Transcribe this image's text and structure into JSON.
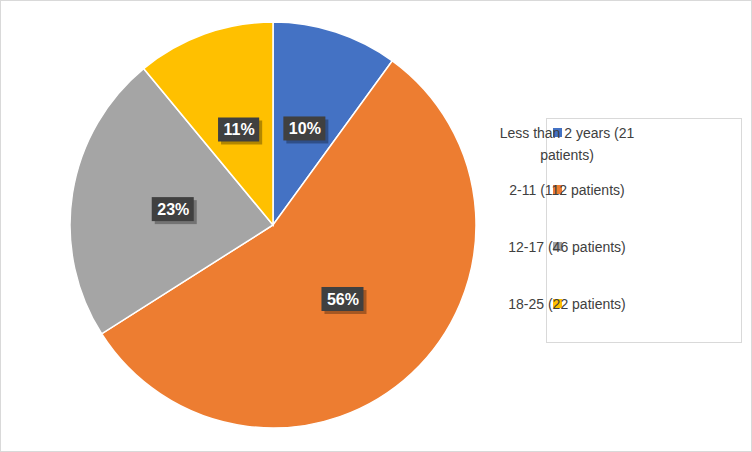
{
  "chart_data": {
    "type": "pie",
    "categories": [
      "Less than 2 years (21 patients)",
      "2-11 (112 patients)",
      "12-17 (46 patients)",
      "18-25 (22 patients)"
    ],
    "values": [
      10,
      56,
      23,
      11
    ],
    "value_labels": [
      "10%",
      "56%",
      "23%",
      "11%"
    ],
    "colors": [
      "#4472c4",
      "#ed7d31",
      "#a5a5a5",
      "#ffc000"
    ],
    "data_labels": true,
    "legend": "right"
  }
}
